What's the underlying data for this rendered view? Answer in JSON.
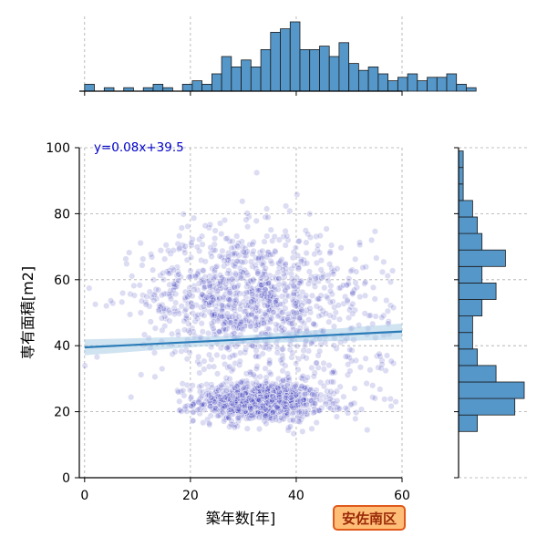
{
  "chart_data": {
    "type": "scatter",
    "xlabel": "築年数[年]",
    "ylabel": "専有面積[m2]",
    "xlim": [
      -1,
      60
    ],
    "ylim": [
      0,
      100
    ],
    "x_ticks": [
      0,
      20,
      40,
      60
    ],
    "y_ticks": [
      0,
      20,
      40,
      60,
      80,
      100
    ],
    "grid": true,
    "regression": {
      "equation": "y=0.08x+39.5",
      "slope": 0.08,
      "intercept": 39.5,
      "confidence_band": 1.2
    },
    "area_label": "安佐南区",
    "point_clusters": [
      {
        "cx": 33,
        "cy": 23,
        "sx": 6,
        "sy": 3,
        "n": 900
      },
      {
        "cx": 29,
        "cy": 55,
        "sx": 9,
        "sy": 10,
        "n": 900
      },
      {
        "cx": 45,
        "cy": 43,
        "sx": 11,
        "sy": 18,
        "n": 400
      }
    ],
    "marginal_x": {
      "bin_start": 0,
      "bin_width": 1.85,
      "counts": [
        2,
        0,
        1,
        0,
        1,
        0,
        1,
        2,
        1,
        0,
        2,
        3,
        2,
        5,
        10,
        7,
        9,
        7,
        12,
        17,
        18,
        20,
        12,
        12,
        13,
        10,
        14,
        8,
        6,
        7,
        5,
        3,
        4,
        5,
        3,
        4,
        4,
        5,
        2,
        1
      ]
    },
    "marginal_y": {
      "bin_start": 14,
      "bin_width": 5,
      "counts": [
        4,
        12,
        14,
        8,
        4,
        3,
        3,
        5,
        8,
        5,
        10,
        5,
        4,
        3,
        1,
        1,
        1,
        0
      ]
    },
    "colors": {
      "points": "#2323b4",
      "regression_line": "#2a7cb8",
      "band": "#a9cce6",
      "histogram_fill": "#5597c9",
      "histogram_edge": "#1a1a1a",
      "grid": "#aaaaaa",
      "equation_text": "#0000c8",
      "badge_fill": "#ffbe78",
      "badge_border": "#e0581a",
      "badge_text": "#9a2a08"
    }
  }
}
